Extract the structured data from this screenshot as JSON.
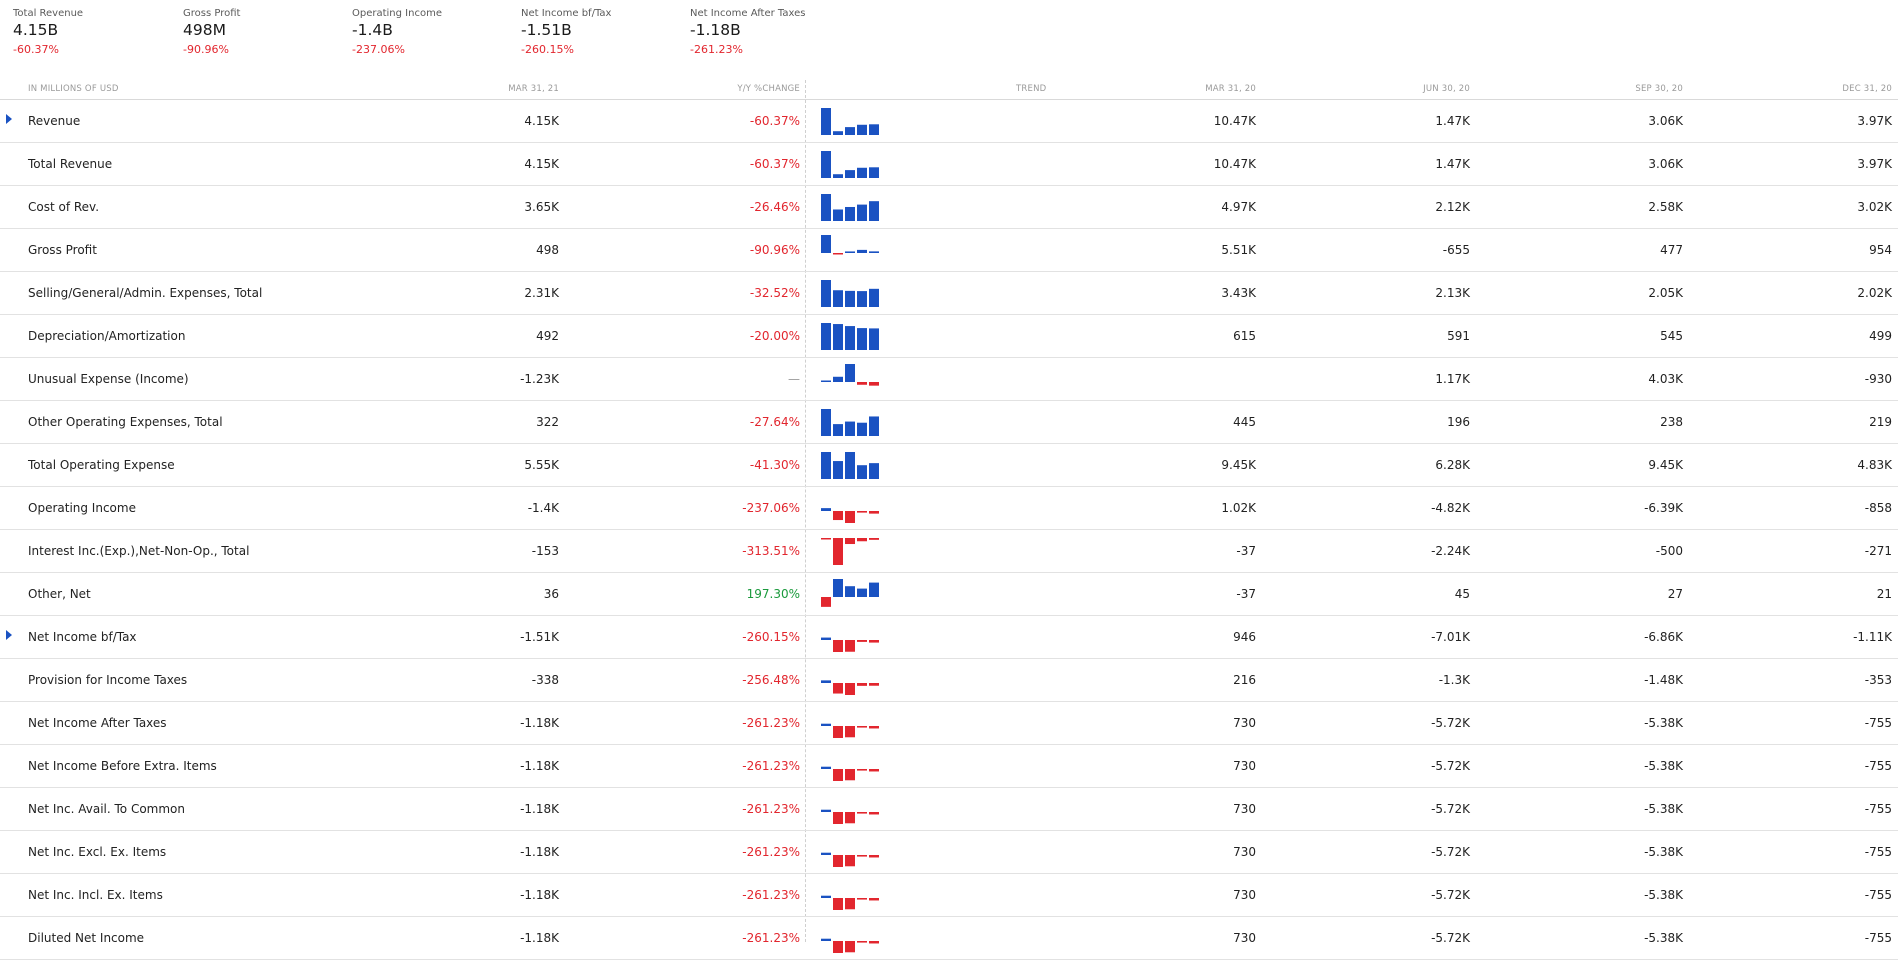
{
  "summary": [
    {
      "label": "Total Revenue",
      "value": "4.15B",
      "change": "-60.37%"
    },
    {
      "label": "Gross Profit",
      "value": "498M",
      "change": "-90.96%"
    },
    {
      "label": "Operating Income",
      "value": "-1.4B",
      "change": "-237.06%"
    },
    {
      "label": "Net Income bf/Tax",
      "value": "-1.51B",
      "change": "-260.15%"
    },
    {
      "label": "Net Income After Taxes",
      "value": "-1.18B",
      "change": "-261.23%"
    }
  ],
  "table": {
    "headers": {
      "label": "IN MILLIONS OF USD",
      "current": "MAR 31, 21",
      "yoy": "Y/Y %CHANGE",
      "trend": "TREND",
      "p1": "MAR 31, 20",
      "p2": "JUN 30, 20",
      "p3": "SEP 30, 20",
      "p4": "DEC 31, 20"
    },
    "colors": {
      "bar_positive": "#1a52c2",
      "bar_negative": "#e2262e",
      "change_negative": "#e2262e",
      "change_positive": "#1a9a3c"
    },
    "rows": [
      {
        "name": "Revenue",
        "expandable": true,
        "current": "4.15K",
        "yoy": "-60.37%",
        "trend": [
          10.47,
          1.47,
          3.06,
          3.97,
          4.15
        ],
        "p1": "10.47K",
        "p2": "1.47K",
        "p3": "3.06K",
        "p4": "3.97K"
      },
      {
        "name": "Total Revenue",
        "expandable": false,
        "current": "4.15K",
        "yoy": "-60.37%",
        "trend": [
          10.47,
          1.47,
          3.06,
          3.97,
          4.15
        ],
        "p1": "10.47K",
        "p2": "1.47K",
        "p3": "3.06K",
        "p4": "3.97K"
      },
      {
        "name": "Cost of Rev.",
        "expandable": false,
        "current": "3.65K",
        "yoy": "-26.46%",
        "trend": [
          4.97,
          2.12,
          2.58,
          3.02,
          3.65
        ],
        "p1": "4.97K",
        "p2": "2.12K",
        "p3": "2.58K",
        "p4": "3.02K"
      },
      {
        "name": "Gross Profit",
        "expandable": false,
        "current": "498",
        "yoy": "-90.96%",
        "trend": [
          5.51,
          -0.655,
          0.477,
          0.954,
          0.498
        ],
        "p1": "5.51K",
        "p2": "-655",
        "p3": "477",
        "p4": "954"
      },
      {
        "name": "Selling/General/Admin. Expenses, Total",
        "expandable": false,
        "current": "2.31K",
        "yoy": "-32.52%",
        "trend": [
          3.43,
          2.13,
          2.05,
          2.02,
          2.31
        ],
        "p1": "3.43K",
        "p2": "2.13K",
        "p3": "2.05K",
        "p4": "2.02K"
      },
      {
        "name": "Depreciation/Amortization",
        "expandable": false,
        "current": "492",
        "yoy": "-20.00%",
        "trend": [
          0.615,
          0.591,
          0.545,
          0.499,
          0.492
        ],
        "p1": "615",
        "p2": "591",
        "p3": "545",
        "p4": "499"
      },
      {
        "name": "Unusual Expense (Income)",
        "expandable": false,
        "current": "-1.23K",
        "yoy": "—",
        "trend": [
          0,
          1.17,
          4.03,
          -0.93,
          -1.23
        ],
        "p1": "",
        "p2": "1.17K",
        "p3": "4.03K",
        "p4": "-930"
      },
      {
        "name": "Other Operating Expenses, Total",
        "expandable": false,
        "current": "322",
        "yoy": "-27.64%",
        "trend": [
          0.445,
          0.196,
          0.238,
          0.219,
          0.322
        ],
        "p1": "445",
        "p2": "196",
        "p3": "238",
        "p4": "219"
      },
      {
        "name": "Total Operating Expense",
        "expandable": false,
        "current": "5.55K",
        "yoy": "-41.30%",
        "trend": [
          9.45,
          6.28,
          9.45,
          4.83,
          5.55
        ],
        "p1": "9.45K",
        "p2": "6.28K",
        "p3": "9.45K",
        "p4": "4.83K"
      },
      {
        "name": "Operating Income",
        "expandable": false,
        "current": "-1.4K",
        "yoy": "-237.06%",
        "trend": [
          1.02,
          -4.82,
          -6.39,
          -0.858,
          -1.4
        ],
        "p1": "1.02K",
        "p2": "-4.82K",
        "p3": "-6.39K",
        "p4": "-858"
      },
      {
        "name": "Interest Inc.(Exp.),Net-Non-Op., Total",
        "expandable": false,
        "current": "-153",
        "yoy": "-313.51%",
        "trend": [
          -0.037,
          -2.24,
          -0.5,
          -0.271,
          -0.153
        ],
        "p1": "-37",
        "p2": "-2.24K",
        "p3": "-500",
        "p4": "-271"
      },
      {
        "name": "Other, Net",
        "expandable": false,
        "current": "36",
        "yoy": "197.30%",
        "trend": [
          -37,
          45,
          27,
          21,
          36
        ],
        "p1": "-37",
        "p2": "45",
        "p3": "27",
        "p4": "21"
      },
      {
        "name": "Net Income bf/Tax",
        "expandable": true,
        "current": "-1.51K",
        "yoy": "-260.15%",
        "trend": [
          0.946,
          -7.01,
          -6.86,
          -1.11,
          -1.51
        ],
        "p1": "946",
        "p2": "-7.01K",
        "p3": "-6.86K",
        "p4": "-1.11K"
      },
      {
        "name": "Provision for Income Taxes",
        "expandable": false,
        "current": "-338",
        "yoy": "-256.48%",
        "trend": [
          0.216,
          -1.3,
          -1.48,
          -0.353,
          -0.338
        ],
        "p1": "216",
        "p2": "-1.3K",
        "p3": "-1.48K",
        "p4": "-353"
      },
      {
        "name": "Net Income After Taxes",
        "expandable": false,
        "current": "-1.18K",
        "yoy": "-261.23%",
        "trend": [
          0.73,
          -5.72,
          -5.38,
          -0.755,
          -1.18
        ],
        "p1": "730",
        "p2": "-5.72K",
        "p3": "-5.38K",
        "p4": "-755"
      },
      {
        "name": "Net Income Before Extra. Items",
        "expandable": false,
        "current": "-1.18K",
        "yoy": "-261.23%",
        "trend": [
          0.73,
          -5.72,
          -5.38,
          -0.755,
          -1.18
        ],
        "p1": "730",
        "p2": "-5.72K",
        "p3": "-5.38K",
        "p4": "-755"
      },
      {
        "name": "Net Inc. Avail. To Common",
        "expandable": false,
        "current": "-1.18K",
        "yoy": "-261.23%",
        "trend": [
          0.73,
          -5.72,
          -5.38,
          -0.755,
          -1.18
        ],
        "p1": "730",
        "p2": "-5.72K",
        "p3": "-5.38K",
        "p4": "-755"
      },
      {
        "name": "Net Inc. Excl. Ex. Items",
        "expandable": false,
        "current": "-1.18K",
        "yoy": "-261.23%",
        "trend": [
          0.73,
          -5.72,
          -5.38,
          -0.755,
          -1.18
        ],
        "p1": "730",
        "p2": "-5.72K",
        "p3": "-5.38K",
        "p4": "-755"
      },
      {
        "name": "Net Inc. Incl. Ex. Items",
        "expandable": false,
        "current": "-1.18K",
        "yoy": "-261.23%",
        "trend": [
          0.73,
          -5.72,
          -5.38,
          -0.755,
          -1.18
        ],
        "p1": "730",
        "p2": "-5.72K",
        "p3": "-5.38K",
        "p4": "-755"
      },
      {
        "name": "Diluted Net Income",
        "expandable": false,
        "current": "-1.18K",
        "yoy": "-261.23%",
        "trend": [
          0.73,
          -5.72,
          -5.38,
          -0.755,
          -1.18
        ],
        "p1": "730",
        "p2": "-5.72K",
        "p3": "-5.38K",
        "p4": "-755"
      }
    ]
  }
}
